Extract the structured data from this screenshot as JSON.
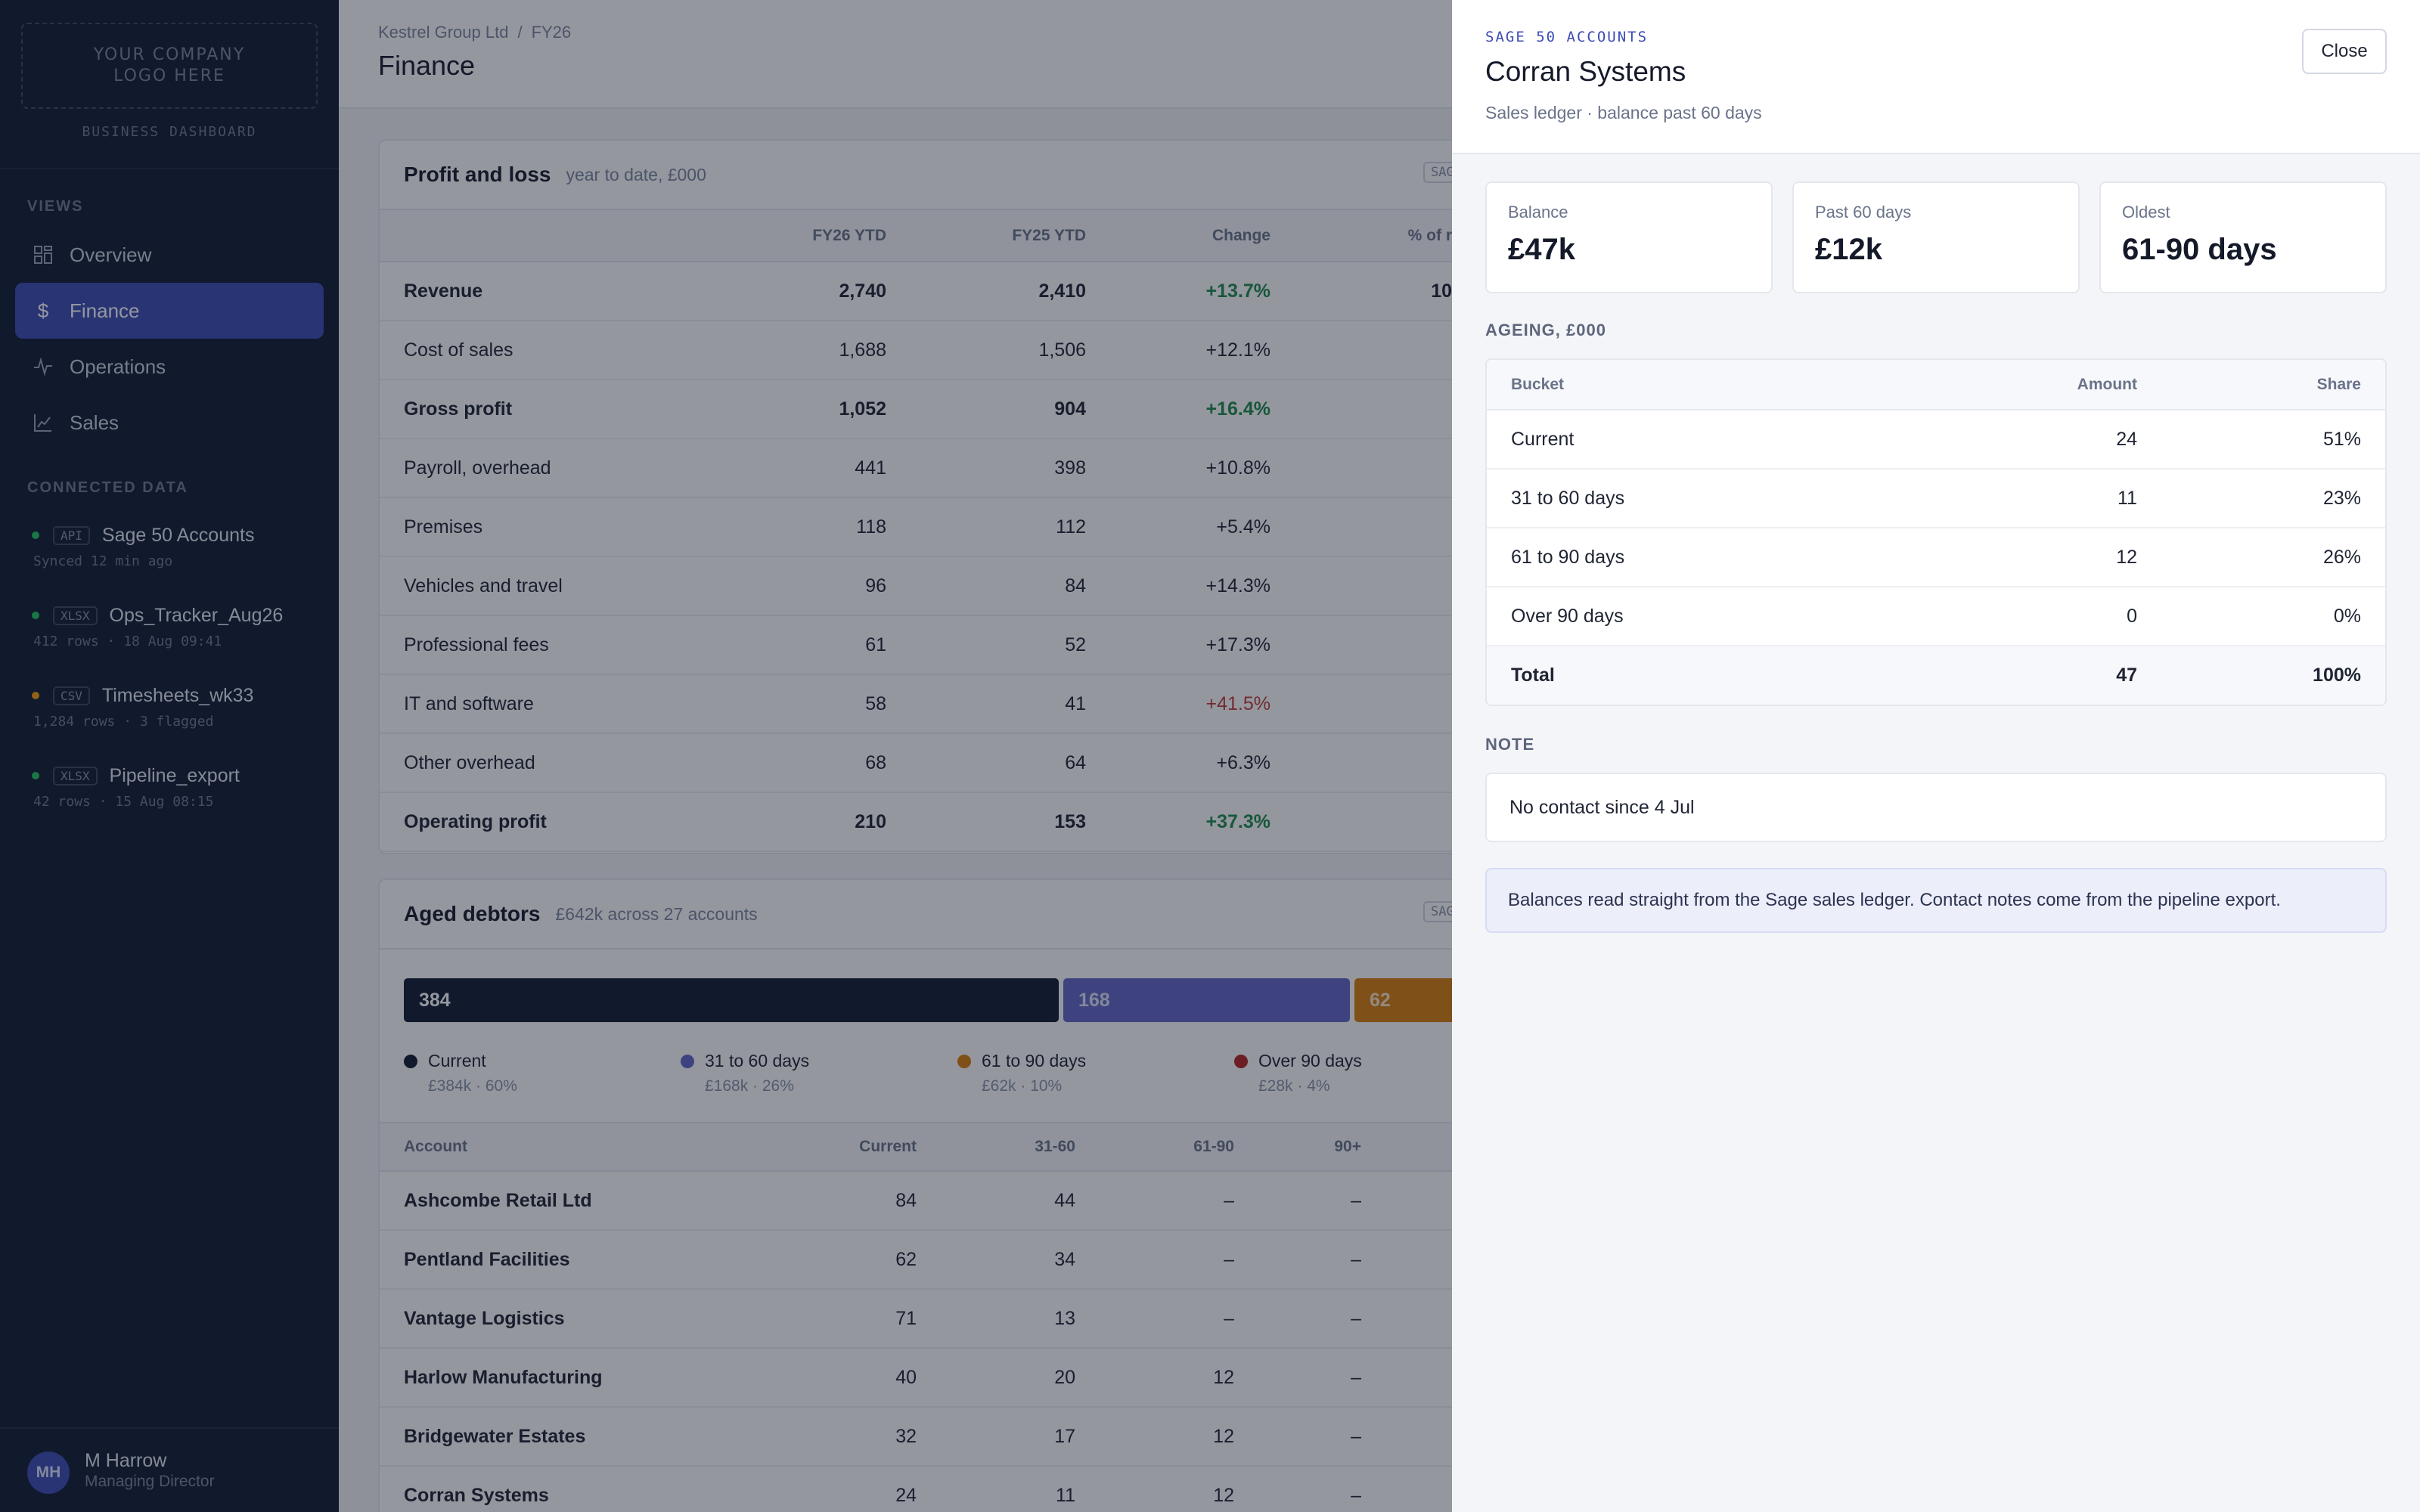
{
  "sidebar": {
    "logo_text": "YOUR COMPANY\nLOGO HERE",
    "logo_caption": "BUSINESS DASHBOARD",
    "views_heading": "VIEWS",
    "nav": [
      {
        "label": "Overview",
        "icon": "grid-icon"
      },
      {
        "label": "Finance",
        "icon": "pound-icon",
        "active": true
      },
      {
        "label": "Operations",
        "icon": "pulse-icon"
      },
      {
        "label": "Sales",
        "icon": "chart-icon"
      }
    ],
    "connected_heading": "CONNECTED DATA",
    "sources": [
      {
        "tag": "API",
        "name": "Sage 50 Accounts",
        "meta": "Synced 12 min ago",
        "status_color": "#22c55e"
      },
      {
        "tag": "XLSX",
        "name": "Ops_Tracker_Aug26",
        "meta": "412 rows · 18 Aug 09:41",
        "status_color": "#22c55e"
      },
      {
        "tag": "CSV",
        "name": "Timesheets_wk33",
        "meta": "1,284 rows · 3 flagged",
        "status_color": "#f59e0b"
      },
      {
        "tag": "XLSX",
        "name": "Pipeline_export",
        "meta": "42 rows · 15 Aug 08:15",
        "status_color": "#22c55e"
      }
    ],
    "user": {
      "initials": "MH",
      "name": "M Harrow",
      "role": "Managing Director"
    }
  },
  "header": {
    "breadcrumb": [
      "Kestrel Group Ltd",
      "FY26"
    ],
    "title": "Finance"
  },
  "pnl": {
    "title": "Profit and loss",
    "subtitle": "year to date, £000",
    "badge": "SAGE",
    "columns": [
      "FY26 YTD",
      "FY25 YTD",
      "Change",
      "% of r"
    ],
    "rows": [
      {
        "label": "Revenue",
        "fy26": "2,740",
        "fy25": "2,410",
        "change": "+13.7%",
        "pct": "10",
        "bold": true,
        "tone": "pos"
      },
      {
        "label": "Cost of sales",
        "fy26": "1,688",
        "fy25": "1,506",
        "change": "+12.1%",
        "pct": "",
        "bold": false,
        "tone": ""
      },
      {
        "label": "Gross profit",
        "fy26": "1,052",
        "fy25": "904",
        "change": "+16.4%",
        "pct": "",
        "bold": true,
        "tone": "pos"
      },
      {
        "label": "Payroll, overhead",
        "fy26": "441",
        "fy25": "398",
        "change": "+10.8%",
        "pct": "",
        "bold": false,
        "tone": ""
      },
      {
        "label": "Premises",
        "fy26": "118",
        "fy25": "112",
        "change": "+5.4%",
        "pct": "",
        "bold": false,
        "tone": ""
      },
      {
        "label": "Vehicles and travel",
        "fy26": "96",
        "fy25": "84",
        "change": "+14.3%",
        "pct": "",
        "bold": false,
        "tone": ""
      },
      {
        "label": "Professional fees",
        "fy26": "61",
        "fy25": "52",
        "change": "+17.3%",
        "pct": "",
        "bold": false,
        "tone": ""
      },
      {
        "label": "IT and software",
        "fy26": "58",
        "fy25": "41",
        "change": "+41.5%",
        "pct": "",
        "bold": false,
        "tone": "neg"
      },
      {
        "label": "Other overhead",
        "fy26": "68",
        "fy25": "64",
        "change": "+6.3%",
        "pct": "",
        "bold": false,
        "tone": ""
      },
      {
        "label": "Operating profit",
        "fy26": "210",
        "fy25": "153",
        "change": "+37.3%",
        "pct": "",
        "bold": true,
        "tone": "pos",
        "total": true
      }
    ]
  },
  "debtors": {
    "title": "Aged debtors",
    "subtitle": "£642k across 27 accounts",
    "badge": "SAGE",
    "bar": [
      {
        "value": 384,
        "label": "384",
        "color": "#111a30"
      },
      {
        "value": 168,
        "label": "168",
        "color": "#6366c9"
      },
      {
        "value": 62,
        "label": "62",
        "color": "#d97f0c"
      },
      {
        "value": 28,
        "label": "",
        "color": "#b42323"
      }
    ],
    "legend": [
      {
        "label": "Current",
        "sub": "£384k · 60%",
        "color": "#111a30"
      },
      {
        "label": "31 to 60 days",
        "sub": "£168k · 26%",
        "color": "#6366c9"
      },
      {
        "label": "61 to 90 days",
        "sub": "£62k · 10%",
        "color": "#d97f0c"
      },
      {
        "label": "Over 90 days",
        "sub": "£28k · 4%",
        "color": "#b42323"
      }
    ],
    "columns": [
      "Account",
      "Current",
      "31-60",
      "61-90",
      "90+"
    ],
    "rows": [
      {
        "account": "Ashcombe Retail Ltd",
        "current": "84",
        "d31": "44",
        "d61": "–",
        "d90": "–"
      },
      {
        "account": "Pentland Facilities",
        "current": "62",
        "d31": "34",
        "d61": "–",
        "d90": "–"
      },
      {
        "account": "Vantage Logistics",
        "current": "71",
        "d31": "13",
        "d61": "–",
        "d90": "–"
      },
      {
        "account": "Harlow Manufacturing",
        "current": "40",
        "d31": "20",
        "d61": "12",
        "d90": "–"
      },
      {
        "account": "Bridgewater Estates",
        "current": "32",
        "d31": "17",
        "d61": "12",
        "d90": "–"
      },
      {
        "account": "Corran Systems",
        "current": "24",
        "d31": "11",
        "d61": "12",
        "d90": "–"
      }
    ]
  },
  "drawer": {
    "kicker": "SAGE 50 ACCOUNTS",
    "title": "Corran Systems",
    "subtitle": "Sales ledger · balance past 60 days",
    "close_label": "Close",
    "stats": [
      {
        "label": "Balance",
        "value": "£47k"
      },
      {
        "label": "Past 60 days",
        "value": "£12k"
      },
      {
        "label": "Oldest",
        "value": "61-90 days"
      }
    ],
    "ageing_heading": "AGEING, £000",
    "ageing_columns": [
      "Bucket",
      "Amount",
      "Share"
    ],
    "ageing_rows": [
      {
        "bucket": "Current",
        "amount": "24",
        "share": "51%"
      },
      {
        "bucket": "31 to 60 days",
        "amount": "11",
        "share": "23%"
      },
      {
        "bucket": "61 to 90 days",
        "amount": "12",
        "share": "26%"
      },
      {
        "bucket": "Over 90 days",
        "amount": "0",
        "share": "0%"
      }
    ],
    "ageing_total": {
      "bucket": "Total",
      "amount": "47",
      "share": "100%"
    },
    "note_heading": "NOTE",
    "note": "No contact since 4 Jul",
    "info": "Balances read straight from the Sage sales ledger. Contact notes come from the pipeline export."
  }
}
